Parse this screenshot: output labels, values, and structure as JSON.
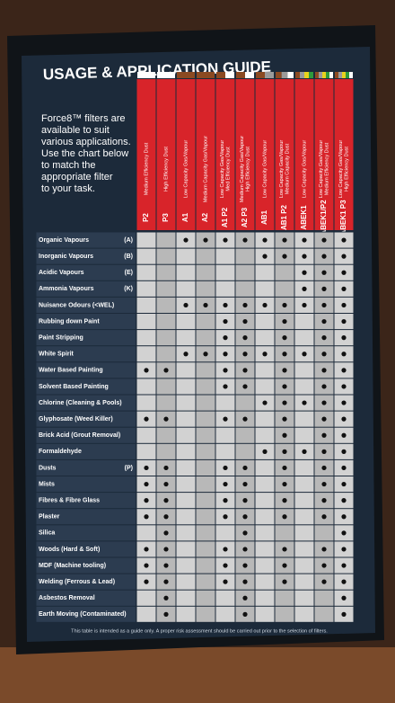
{
  "title": "USAGE & APPLICATION GUIDE",
  "intro": [
    "Force8™ filters are",
    "available to suit",
    "various applications.",
    "Use the chart below",
    "to match the",
    "appropriate filter",
    "to your task."
  ],
  "columns": [
    {
      "code": "P2",
      "description": [
        "Medium Efficiency Dust"
      ],
      "band": [
        "#ffffff"
      ]
    },
    {
      "code": "P3",
      "description": [
        "High Efficiency Dust"
      ],
      "band": [
        "#ffffff"
      ]
    },
    {
      "code": "A1",
      "description": [
        "Low Capacity Gas/Vapour"
      ],
      "band": [
        "#8b4a22"
      ]
    },
    {
      "code": "A2",
      "description": [
        "Medium Capacity Gas/Vapour"
      ],
      "band": [
        "#8b4a22"
      ]
    },
    {
      "code": "A1 P2",
      "description": [
        "Low Capacity Gas/Vapour",
        "Med Efficiency Dust"
      ],
      "band": [
        "#8b4a22",
        "#ffffff"
      ]
    },
    {
      "code": "A2 P3",
      "description": [
        "Medium Capacity Gas/Vapour",
        "High Efficiency Dust"
      ],
      "band": [
        "#8b4a22",
        "#ffffff"
      ]
    },
    {
      "code": "AB1",
      "description": [
        "Low Capacity Gas/Vapour"
      ],
      "band": [
        "#8b4a22",
        "#9a9a9a"
      ]
    },
    {
      "code": "AB1 P2",
      "description": [
        "Low Capacity Gas/Vapour",
        "Medium Capacity Dust"
      ],
      "band": [
        "#8b4a22",
        "#9a9a9a",
        "#ffffff"
      ]
    },
    {
      "code": "ABEK1",
      "description": [
        "Low Capacity Gas/Vapour"
      ],
      "band": [
        "#8b4a22",
        "#9a9a9a",
        "#e8d21c",
        "#2e9a3c"
      ]
    },
    {
      "code": "ABEK1/P2",
      "description": [
        "Low Capacity Gas/Vapour",
        "Medium Efficiency Dust"
      ],
      "band": [
        "#8b4a22",
        "#9a9a9a",
        "#e8d21c",
        "#2e9a3c",
        "#ffffff"
      ]
    },
    {
      "code": "ABEK1 P3",
      "description": [
        "Low Capacity Gas/Vapour",
        "High Efficiency Dust"
      ],
      "band": [
        "#8b4a22",
        "#9a9a9a",
        "#e8d21c",
        "#2e9a3c",
        "#ffffff"
      ]
    }
  ],
  "rows": [
    {
      "label": "Organic Vapours",
      "code": "(A)",
      "dots": [
        0,
        0,
        1,
        1,
        1,
        1,
        1,
        1,
        1,
        1,
        1
      ]
    },
    {
      "label": "Inorganic Vapours",
      "code": "(B)",
      "dots": [
        0,
        0,
        0,
        0,
        0,
        0,
        1,
        1,
        1,
        1,
        1
      ]
    },
    {
      "label": "Acidic Vapours",
      "code": "(E)",
      "dots": [
        0,
        0,
        0,
        0,
        0,
        0,
        0,
        0,
        1,
        1,
        1
      ]
    },
    {
      "label": "Ammonia Vapours",
      "code": "(K)",
      "dots": [
        0,
        0,
        0,
        0,
        0,
        0,
        0,
        0,
        1,
        1,
        1
      ]
    },
    {
      "label": "Nuisance Odours (<WEL)",
      "dots": [
        0,
        0,
        1,
        1,
        1,
        1,
        1,
        1,
        1,
        1,
        1
      ]
    },
    {
      "label": "Rubbing down Paint",
      "dots": [
        0,
        0,
        0,
        0,
        1,
        1,
        0,
        1,
        0,
        1,
        1
      ]
    },
    {
      "label": "Paint Stripping",
      "dots": [
        0,
        0,
        0,
        0,
        1,
        1,
        0,
        1,
        0,
        1,
        1
      ]
    },
    {
      "label": "White Spirit",
      "dots": [
        0,
        0,
        1,
        1,
        1,
        1,
        1,
        1,
        1,
        1,
        1
      ]
    },
    {
      "label": "Water Based Painting",
      "dots": [
        1,
        1,
        0,
        0,
        1,
        1,
        0,
        1,
        0,
        1,
        1
      ]
    },
    {
      "label": "Solvent Based Painting",
      "dots": [
        0,
        0,
        0,
        0,
        1,
        1,
        0,
        1,
        0,
        1,
        1
      ]
    },
    {
      "label": "Chlorine (Cleaning & Pools)",
      "dots": [
        0,
        0,
        0,
        0,
        0,
        0,
        1,
        1,
        1,
        1,
        1
      ]
    },
    {
      "label": "Glyphosate (Weed Killer)",
      "dots": [
        1,
        1,
        0,
        0,
        1,
        1,
        0,
        1,
        0,
        1,
        1
      ]
    },
    {
      "label": "Brick Acid (Grout Removal)",
      "dots": [
        0,
        0,
        0,
        0,
        0,
        0,
        0,
        1,
        0,
        1,
        1
      ]
    },
    {
      "label": "Formaldehyde",
      "dots": [
        0,
        0,
        0,
        0,
        0,
        0,
        1,
        1,
        1,
        1,
        1
      ]
    },
    {
      "label": "Dusts",
      "code": "(P)",
      "dots": [
        1,
        1,
        0,
        0,
        1,
        1,
        0,
        1,
        0,
        1,
        1
      ]
    },
    {
      "label": "Mists",
      "dots": [
        1,
        1,
        0,
        0,
        1,
        1,
        0,
        1,
        0,
        1,
        1
      ]
    },
    {
      "label": "Fibres & Fibre Glass",
      "dots": [
        1,
        1,
        0,
        0,
        1,
        1,
        0,
        1,
        0,
        1,
        1
      ]
    },
    {
      "label": "Plaster",
      "dots": [
        1,
        1,
        0,
        0,
        1,
        1,
        0,
        1,
        0,
        1,
        1
      ]
    },
    {
      "label": "Silica",
      "dots": [
        0,
        1,
        0,
        0,
        0,
        1,
        0,
        0,
        0,
        0,
        1
      ]
    },
    {
      "label": "Woods (Hard & Soft)",
      "dots": [
        1,
        1,
        0,
        0,
        1,
        1,
        0,
        1,
        0,
        1,
        1
      ]
    },
    {
      "label": "MDF (Machine tooling)",
      "dots": [
        1,
        1,
        0,
        0,
        1,
        1,
        0,
        1,
        0,
        1,
        1
      ]
    },
    {
      "label": "Welding (Ferrous & Lead)",
      "dots": [
        1,
        1,
        0,
        0,
        1,
        1,
        0,
        1,
        0,
        1,
        1
      ]
    },
    {
      "label": "Asbestos Removal",
      "dots": [
        0,
        1,
        0,
        0,
        0,
        1,
        0,
        0,
        0,
        0,
        1
      ]
    },
    {
      "label": "Earth Moving (Contaminated)",
      "dots": [
        0,
        1,
        0,
        0,
        0,
        1,
        0,
        0,
        0,
        0,
        1
      ]
    }
  ],
  "footnote": "This table is intended as a guide only. A proper risk assessment should be carried out prior to the selection of filters."
}
